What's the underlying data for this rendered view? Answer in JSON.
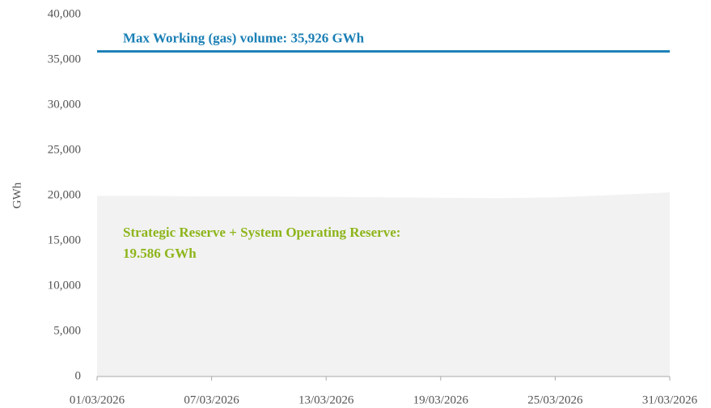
{
  "chart_data": {
    "type": "area",
    "y_label": "GWh",
    "x": [
      "01/03/2026",
      "04/03/2026",
      "07/03/2026",
      "10/03/2026",
      "13/03/2026",
      "16/03/2026",
      "19/03/2026",
      "22/03/2026",
      "25/03/2026",
      "28/03/2026",
      "31/03/2026"
    ],
    "xticks": [
      "01/03/2026",
      "07/03/2026",
      "13/03/2026",
      "19/03/2026",
      "25/03/2026",
      "31/03/2026"
    ],
    "area": {
      "color": "#f2f2f2",
      "values": [
        19950,
        19950,
        19900,
        19900,
        19850,
        19800,
        19750,
        19700,
        19800,
        20050,
        20350
      ]
    },
    "reference_line": {
      "value": 35926,
      "color": "#1a7fb5"
    },
    "annotations": {
      "max_volume": "Max Working (gas) volume: 35,926 GWh",
      "reserve": [
        "Strategic Reserve + System Operating Reserve:",
        "19.586 GWh"
      ]
    },
    "ylim": [
      0,
      40000
    ],
    "yticks": [
      0,
      {
        "value": 5000,
        "label": "5,000"
      },
      {
        "value": 10000,
        "label": "10,000"
      },
      {
        "value": 15000,
        "label": "15,000"
      },
      {
        "value": 20000,
        "label": "20,000"
      },
      {
        "value": 25000,
        "label": "25,000"
      },
      {
        "value": 30000,
        "label": "30,000"
      },
      {
        "value": 35000,
        "label": "35,000"
      },
      {
        "value": 40000,
        "label": "40,000"
      }
    ],
    "grid": false
  }
}
